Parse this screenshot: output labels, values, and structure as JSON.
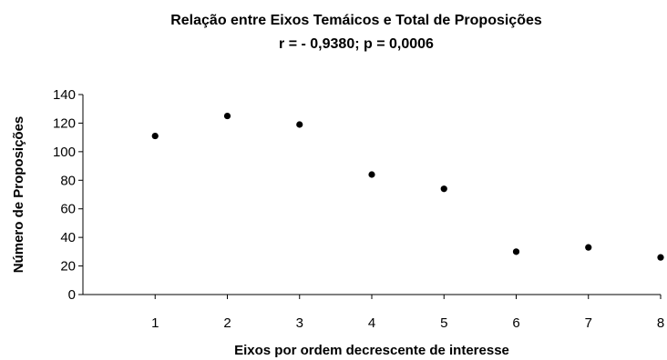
{
  "chart_data": {
    "type": "scatter",
    "title": "Relação entre Eixos Temáicos e Total de Proposições",
    "subtitle": "r = - 0,9380; p = 0,0006",
    "xlabel": "Eixos por ordem decrescente de interesse",
    "ylabel": "Número de Proposições",
    "x": [
      1,
      2,
      3,
      4,
      5,
      6,
      7,
      8
    ],
    "y": [
      111,
      125,
      119,
      84,
      74,
      30,
      33,
      26
    ],
    "xlim": [
      0,
      8
    ],
    "ylim": [
      0,
      140
    ],
    "xticks": [
      "1",
      "2",
      "3",
      "4",
      "5",
      "6",
      "7",
      "8"
    ],
    "yticks": [
      "0",
      "20",
      "40",
      "60",
      "80",
      "100",
      "120",
      "140"
    ],
    "grid": false,
    "marker_color": "#000000"
  }
}
